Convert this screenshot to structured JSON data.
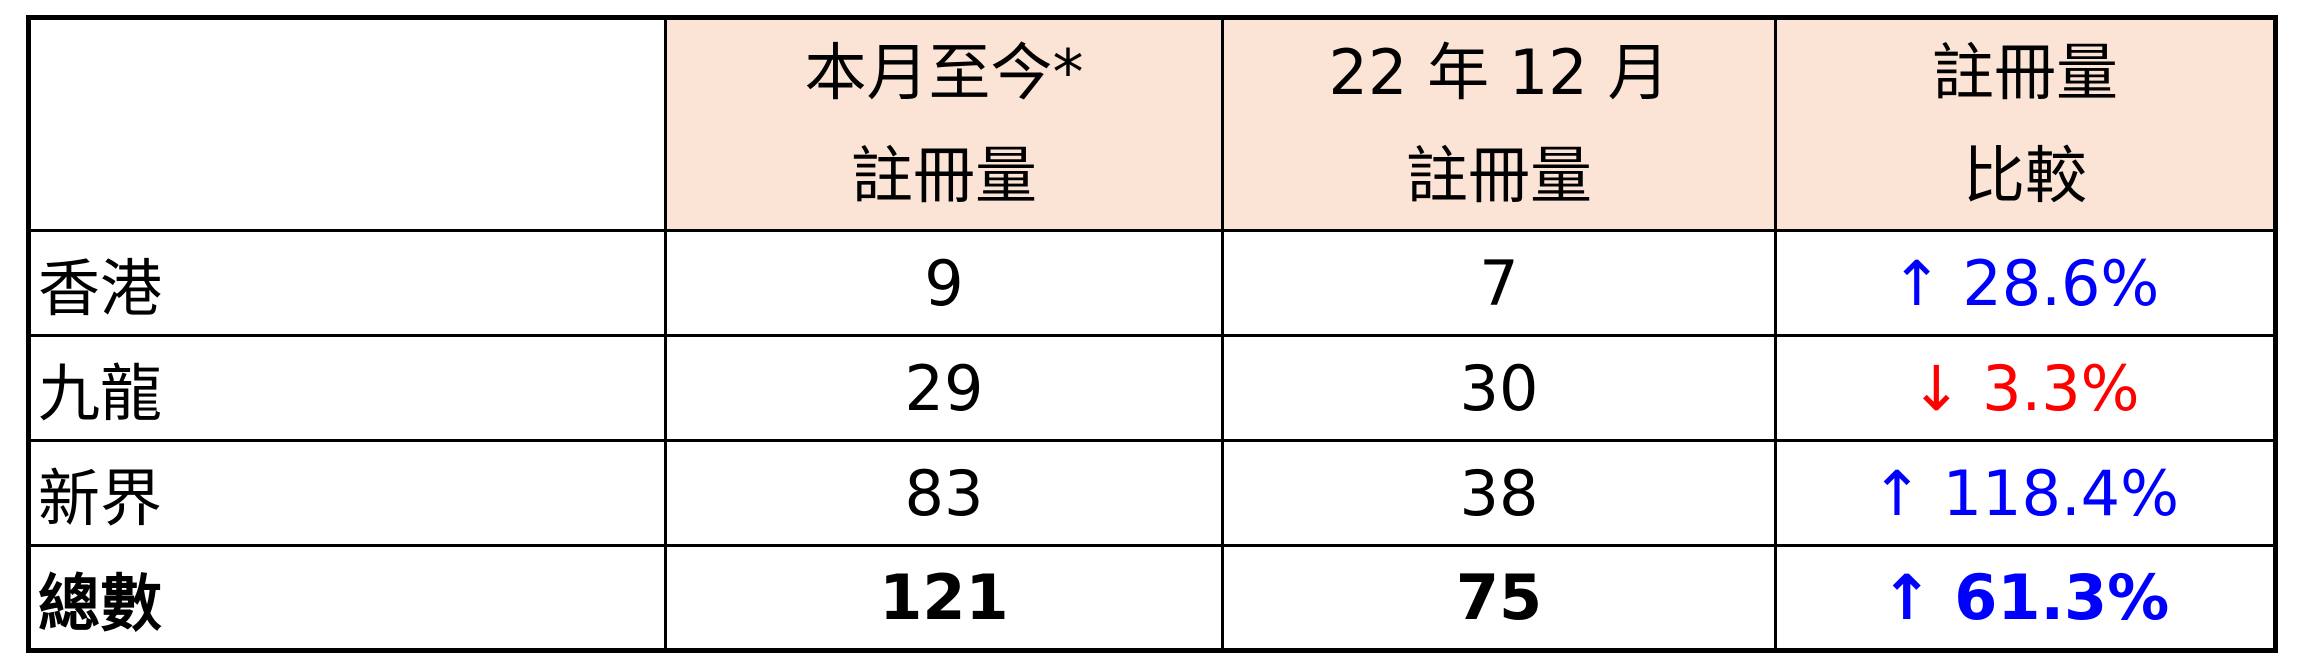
{
  "page": {
    "background_color": "#ffffff",
    "table_border_color": "#000000",
    "header_fill_color": "#FBE4D5",
    "up_color": "#0000FF",
    "down_color": "#FF0000"
  },
  "table": {
    "headers": [
      {
        "line1": "",
        "line2": ""
      },
      {
        "line1": "本月至今*",
        "line2": "註冊量"
      },
      {
        "line1": "22 年 12 月",
        "line2": "註冊量"
      },
      {
        "line1": "註冊量",
        "line2": "比較"
      }
    ],
    "rows": [
      {
        "region": "香港",
        "current": "9",
        "previous": "7",
        "change": "↑ 28.6%",
        "direction": "up",
        "change_color": "#0000FF",
        "bold": false
      },
      {
        "region": "九龍",
        "current": "29",
        "previous": "30",
        "change": "↓ 3.3%",
        "direction": "down",
        "change_color": "#FF0000",
        "bold": false
      },
      {
        "region": "新界",
        "current": "83",
        "previous": "38",
        "change": "↑ 118.4%",
        "direction": "up",
        "change_color": "#0000FF",
        "bold": false
      },
      {
        "region": "總數",
        "current": "121",
        "previous": "75",
        "change": "↑ 61.3%",
        "direction": "up",
        "change_color": "#0000FF",
        "bold": true
      }
    ]
  },
  "chart_data": {
    "type": "table",
    "title": "",
    "columns": [
      "",
      "本月至今* 註冊量",
      "22 年 12 月 註冊量",
      "註冊量 比較"
    ],
    "rows": [
      [
        "香港",
        9,
        7,
        "+28.6%"
      ],
      [
        "九龍",
        29,
        30,
        "-3.3%"
      ],
      [
        "新界",
        83,
        38,
        "+118.4%"
      ],
      [
        "總數",
        121,
        75,
        "+61.3%"
      ]
    ],
    "notes": {
      "change_direction_per_row": [
        "up",
        "down",
        "up",
        "up"
      ],
      "up_color": "#0000FF",
      "down_color": "#FF0000",
      "total_row_bold": true,
      "header_fill": "#FBE4D5"
    }
  }
}
